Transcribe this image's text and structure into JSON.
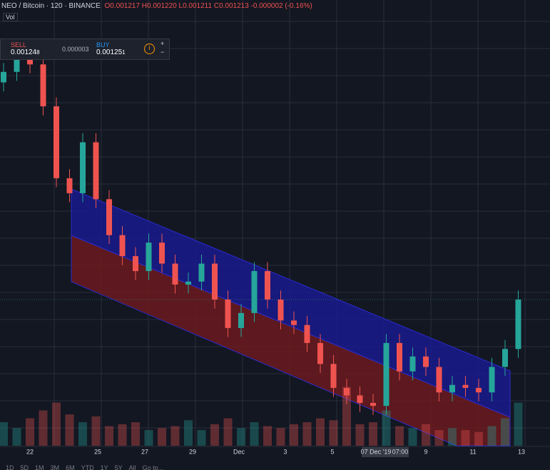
{
  "header": {
    "symbol": "NEO / Bitcoin",
    "interval": "120",
    "exchange": "BINANCE",
    "o_label": "O",
    "o": "0.001217",
    "h_label": "H",
    "h": "0.001220",
    "l_label": "L",
    "l": "0.001211",
    "c_label": "C",
    "c": "0.001213",
    "change": "-0.000002 (-0.16%)",
    "vol_label": "Vol"
  },
  "trade_panel": {
    "sell_label": "SELL",
    "sell_main": "0.00124",
    "sell_last": "8",
    "spread": "0.000003",
    "buy_label": "BUY",
    "buy_main": "0.00125",
    "buy_last": "1",
    "plus": "+",
    "minus": "−"
  },
  "toolbar": [
    "1D",
    "5D",
    "1M",
    "3M",
    "6M",
    "YTD",
    "1Y",
    "5Y",
    "All",
    "Go to..."
  ],
  "chart_data": {
    "type": "candlestick",
    "x_labels": [
      "22",
      "25",
      "27",
      "29",
      "Dec",
      "3",
      "5",
      "9",
      "11",
      "13"
    ],
    "crosshair_label": [
      "07 Dec '19",
      "07:00"
    ],
    "open": [
      0.001358,
      0.001365,
      0.001375,
      0.00137,
      0.001342,
      0.001294,
      0.001284,
      0.001318,
      0.00128,
      0.001256,
      0.001242,
      0.001232,
      0.001251,
      0.001237,
      0.001223,
      0.001225,
      0.001237,
      0.001213,
      0.001194,
      0.001204,
      0.001232,
      0.001213,
      0.001199,
      0.001196,
      0.001184,
      0.00117,
      0.001154,
      0.001149,
      0.001144,
      0.001142,
      0.001184,
      0.001165,
      0.001175,
      0.001168,
      0.001151,
      0.001156,
      0.001154,
      0.001151,
      0.001168,
      0.00118
    ],
    "high": [
      0.001371,
      0.001381,
      0.001381,
      0.001376,
      0.001348,
      0.0013,
      0.001324,
      0.001324,
      0.001286,
      0.001262,
      0.001248,
      0.001257,
      0.001257,
      0.001243,
      0.001231,
      0.001243,
      0.001243,
      0.001219,
      0.00121,
      0.001238,
      0.001238,
      0.001219,
      0.001205,
      0.001202,
      0.00119,
      0.001176,
      0.00116,
      0.001155,
      0.00115,
      0.00119,
      0.00119,
      0.001181,
      0.001181,
      0.001174,
      0.001162,
      0.001162,
      0.00116,
      0.001174,
      0.001186,
      0.001219
    ],
    "low": [
      0.001352,
      0.001359,
      0.001364,
      0.001336,
      0.001288,
      0.001278,
      0.001278,
      0.001274,
      0.00125,
      0.001236,
      0.001226,
      0.001226,
      0.001231,
      0.001217,
      0.001217,
      0.001219,
      0.001207,
      0.001188,
      0.001188,
      0.001198,
      0.001207,
      0.001193,
      0.00119,
      0.001178,
      0.001164,
      0.001148,
      0.001143,
      0.001138,
      0.001136,
      0.001136,
      0.001159,
      0.001159,
      0.001162,
      0.001145,
      0.001145,
      0.001148,
      0.001145,
      0.001145,
      0.001162,
      0.001174
    ],
    "close": [
      0.001365,
      0.001375,
      0.00137,
      0.001342,
      0.001294,
      0.001284,
      0.001318,
      0.00128,
      0.001256,
      0.001242,
      0.001232,
      0.001251,
      0.001237,
      0.001223,
      0.001225,
      0.001237,
      0.001213,
      0.001194,
      0.001204,
      0.001232,
      0.001213,
      0.001199,
      0.001196,
      0.001184,
      0.00117,
      0.001154,
      0.001149,
      0.001144,
      0.001142,
      0.001184,
      0.001165,
      0.001175,
      0.001168,
      0.001151,
      0.001156,
      0.001154,
      0.001151,
      0.001168,
      0.00118,
      0.001213
    ],
    "volume": [
      60,
      45,
      70,
      90,
      110,
      80,
      60,
      75,
      50,
      55,
      60,
      40,
      45,
      50,
      65,
      40,
      55,
      70,
      45,
      60,
      50,
      45,
      55,
      60,
      70,
      65,
      150,
      55,
      60,
      90,
      50,
      45,
      55,
      40,
      45,
      40,
      35,
      50,
      70,
      110
    ],
    "ylim": [
      0.001113,
      0.001413
    ],
    "volume_lim": [
      0,
      200
    ],
    "up_color": "#26a69a",
    "down_color": "#ef5350"
  }
}
